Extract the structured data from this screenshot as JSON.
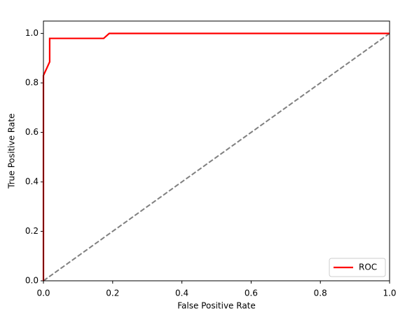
{
  "chart_data": {
    "type": "line",
    "x_label": "False Positive Rate",
    "y_label": "True Positive Rate",
    "series": [
      {
        "name": "ROC",
        "color": "#ff0000",
        "x": [
          0,
          0,
          0.018,
          0.018,
          0.174,
          0.19,
          1
        ],
        "values": [
          0,
          0.83,
          0.885,
          0.98,
          0.98,
          1,
          1
        ]
      }
    ],
    "reference_line": {
      "x": [
        0,
        1
      ],
      "values": [
        0,
        1
      ],
      "color": "#808080",
      "style": "dashed"
    },
    "xlim": [
      0,
      1
    ],
    "ylim": [
      0,
      1.05
    ],
    "xticks": [
      {
        "value": 0,
        "label": "0.0"
      },
      0.2,
      0.4,
      0.6,
      0.8,
      {
        "value": 1,
        "label": "1.0"
      }
    ],
    "yticks": [
      {
        "value": 0,
        "label": "0.0"
      },
      0.2,
      0.4,
      0.6,
      0.8,
      {
        "value": 1,
        "label": "1.0"
      }
    ],
    "grid": false,
    "legend": "lower right"
  }
}
